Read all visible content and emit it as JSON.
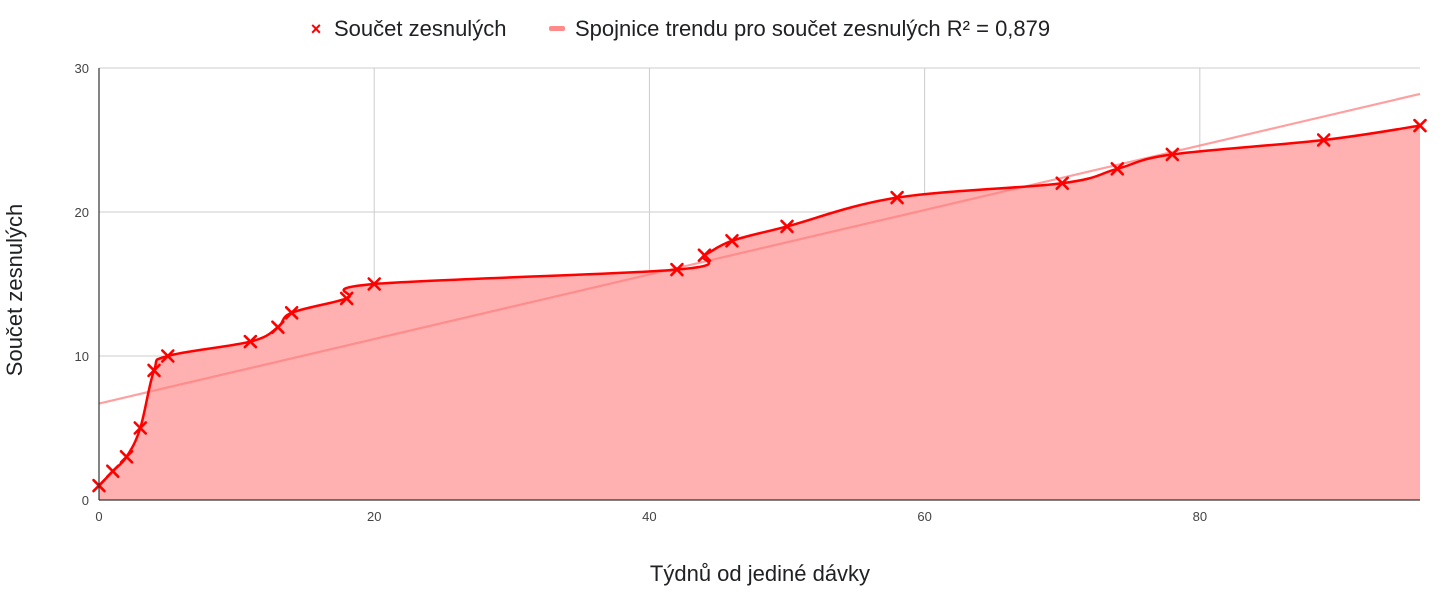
{
  "chart_data": {
    "type": "area",
    "xlabel": "Týdnů od jediné dávky",
    "ylabel": "Součet zesnulých",
    "xlim": [
      0,
      96
    ],
    "ylim": [
      0,
      30
    ],
    "x_ticks": [
      0,
      20,
      40,
      60,
      80
    ],
    "y_ticks": [
      0,
      10,
      20,
      30
    ],
    "x_tick_labels": [
      "0",
      "20",
      "40",
      "60",
      "80"
    ],
    "y_tick_labels": [
      "0",
      "10",
      "20",
      "30"
    ],
    "grid": true,
    "legend_position": "top",
    "series": [
      {
        "name": "Součet zesnulých",
        "color": "#ff0000",
        "fill_color": "#ffb0b0",
        "marker": "x",
        "x": [
          0,
          1,
          2,
          3,
          4,
          5,
          11,
          13,
          14,
          18,
          20,
          42,
          44,
          46,
          50,
          58,
          70,
          74,
          78,
          89,
          96
        ],
        "y": [
          1,
          2,
          3,
          5,
          9,
          10,
          11,
          12,
          13,
          14,
          15,
          16,
          17,
          18,
          19,
          21,
          22,
          23,
          24,
          25,
          26
        ]
      }
    ],
    "trendline": {
      "name": "Spojnice trendu pro součet zesnulých R² = 0,879",
      "color": "#ff8080",
      "x": [
        0,
        96
      ],
      "y": [
        6.7,
        28.2
      ]
    }
  }
}
